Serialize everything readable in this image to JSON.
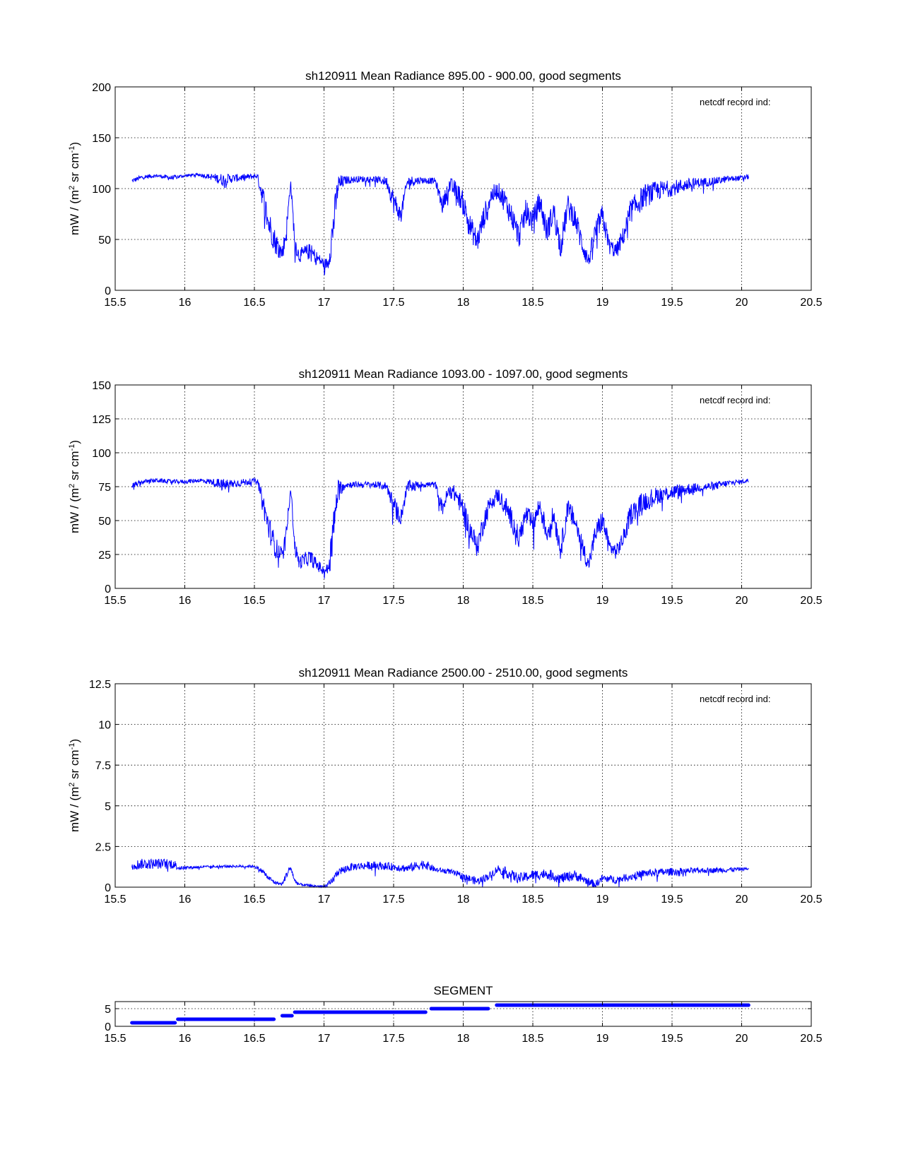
{
  "chart_data": [
    {
      "type": "line",
      "title": "sh120911 Mean Radiance 895.00 - 900.00, good segments",
      "xlabel": "",
      "ylabel": "mW / (m^2 sr cm^-1)",
      "ylabel_parts": [
        "mW / (m",
        "2",
        " sr cm",
        "-1",
        ")"
      ],
      "annotation": "netcdf record ind:",
      "xlim": [
        15.5,
        20.5
      ],
      "ylim": [
        0,
        200
      ],
      "xticks": [
        15.5,
        16,
        16.5,
        17,
        17.5,
        18,
        18.5,
        19,
        19.5,
        20,
        20.5
      ],
      "xtick_labels": [
        "15.5",
        "16",
        "16.5",
        "17",
        "17.5",
        "18",
        "18.5",
        "19",
        "19.5",
        "20",
        "20.5"
      ],
      "yticks": [
        0,
        50,
        100,
        150,
        200
      ],
      "ytick_labels": [
        "0",
        "50",
        "100",
        "150",
        "200"
      ],
      "grid": true,
      "color": "#0000ff",
      "series": [
        {
          "name": "Mean Radiance 895-900",
          "x": [
            15.62,
            15.7,
            15.8,
            15.9,
            16.0,
            16.1,
            16.2,
            16.27,
            16.35,
            16.45,
            16.52,
            16.56,
            16.6,
            16.65,
            16.7,
            16.73,
            16.76,
            16.79,
            16.82,
            16.86,
            16.9,
            16.95,
            17.0,
            17.03,
            17.06,
            17.1,
            17.15,
            17.25,
            17.35,
            17.45,
            17.5,
            17.55,
            17.6,
            17.7,
            17.8,
            17.85,
            17.9,
            17.95,
            18.0,
            18.05,
            18.1,
            18.15,
            18.2,
            18.25,
            18.3,
            18.35,
            18.4,
            18.45,
            18.5,
            18.55,
            18.6,
            18.65,
            18.7,
            18.75,
            18.8,
            18.85,
            18.9,
            18.95,
            19.0,
            19.05,
            19.1,
            19.15,
            19.2,
            19.3,
            19.4,
            19.5,
            19.6,
            19.7,
            19.8,
            19.9,
            20.0,
            20.05
          ],
          "y": [
            108,
            112,
            113,
            111,
            113,
            114,
            112,
            110,
            111,
            112,
            113,
            95,
            70,
            50,
            38,
            60,
            108,
            50,
            35,
            38,
            40,
            33,
            27,
            28,
            60,
            105,
            109,
            110,
            110,
            108,
            90,
            75,
            108,
            109,
            108,
            85,
            105,
            100,
            88,
            65,
            50,
            75,
            95,
            100,
            90,
            75,
            55,
            80,
            70,
            90,
            60,
            80,
            45,
            85,
            75,
            50,
            30,
            60,
            75,
            45,
            40,
            55,
            80,
            95,
            100,
            102,
            105,
            107,
            108,
            110,
            111,
            112
          ],
          "noise": [
            3,
            3,
            2,
            3,
            2,
            2,
            4,
            8,
            5,
            4,
            3,
            15,
            18,
            15,
            10,
            15,
            5,
            12,
            8,
            10,
            10,
            8,
            6,
            8,
            25,
            15,
            5,
            4,
            4,
            6,
            15,
            10,
            8,
            4,
            4,
            10,
            10,
            12,
            15,
            15,
            15,
            15,
            12,
            10,
            15,
            15,
            15,
            15,
            15,
            15,
            15,
            15,
            15,
            15,
            15,
            15,
            10,
            15,
            15,
            10,
            10,
            12,
            15,
            15,
            12,
            10,
            8,
            6,
            5,
            4,
            3,
            3
          ]
        }
      ]
    },
    {
      "type": "line",
      "title": "sh120911 Mean Radiance 1093.00 - 1097.00, good segments",
      "xlabel": "",
      "ylabel": "mW / (m^2 sr cm^-1)",
      "ylabel_parts": [
        "mW / (m",
        "2",
        " sr cm",
        "-1",
        ")"
      ],
      "annotation": "netcdf record ind:",
      "xlim": [
        15.5,
        20.5
      ],
      "ylim": [
        0,
        150
      ],
      "xticks": [
        15.5,
        16,
        16.5,
        17,
        17.5,
        18,
        18.5,
        19,
        19.5,
        20,
        20.5
      ],
      "xtick_labels": [
        "15.5",
        "16",
        "16.5",
        "17",
        "17.5",
        "18",
        "18.5",
        "19",
        "19.5",
        "20",
        "20.5"
      ],
      "yticks": [
        0,
        25,
        50,
        75,
        100,
        125,
        150
      ],
      "ytick_labels": [
        "0",
        "25",
        "50",
        "75",
        "100",
        "125",
        "150"
      ],
      "grid": true,
      "color": "#0000ff",
      "series": [
        {
          "name": "Mean Radiance 1093-1097",
          "x": [
            15.62,
            15.7,
            15.8,
            15.9,
            16.0,
            16.1,
            16.2,
            16.27,
            16.35,
            16.45,
            16.52,
            16.56,
            16.6,
            16.65,
            16.7,
            16.73,
            16.76,
            16.79,
            16.82,
            16.86,
            16.9,
            16.95,
            17.0,
            17.03,
            17.06,
            17.1,
            17.15,
            17.25,
            17.35,
            17.45,
            17.5,
            17.55,
            17.6,
            17.7,
            17.8,
            17.85,
            17.9,
            17.95,
            18.0,
            18.05,
            18.1,
            18.15,
            18.2,
            18.25,
            18.3,
            18.35,
            18.4,
            18.45,
            18.5,
            18.55,
            18.6,
            18.65,
            18.7,
            18.75,
            18.8,
            18.85,
            18.9,
            18.95,
            19.0,
            19.05,
            19.1,
            19.15,
            19.2,
            19.3,
            19.4,
            19.5,
            19.6,
            19.7,
            19.8,
            19.9,
            20.0,
            20.05
          ],
          "y": [
            76,
            79,
            80,
            79,
            79,
            80,
            79,
            77,
            78,
            79,
            80,
            65,
            48,
            32,
            25,
            40,
            77,
            32,
            20,
            22,
            24,
            18,
            14,
            15,
            40,
            74,
            77,
            77,
            77,
            76,
            63,
            53,
            76,
            77,
            77,
            60,
            74,
            70,
            60,
            45,
            32,
            52,
            66,
            70,
            63,
            52,
            38,
            56,
            49,
            63,
            42,
            56,
            30,
            60,
            52,
            35,
            18,
            42,
            52,
            32,
            28,
            38,
            56,
            66,
            70,
            72,
            74,
            75,
            76,
            78,
            79,
            80
          ],
          "noise": [
            3,
            2,
            2,
            2,
            2,
            2,
            3,
            6,
            4,
            3,
            2,
            10,
            12,
            10,
            7,
            10,
            4,
            8,
            6,
            7,
            7,
            6,
            4,
            6,
            18,
            10,
            3,
            3,
            3,
            4,
            10,
            7,
            6,
            3,
            3,
            7,
            7,
            8,
            10,
            10,
            10,
            10,
            8,
            7,
            10,
            10,
            10,
            10,
            10,
            10,
            10,
            10,
            10,
            10,
            10,
            10,
            7,
            10,
            10,
            7,
            7,
            8,
            10,
            10,
            8,
            7,
            6,
            4,
            4,
            3,
            2,
            2
          ]
        }
      ]
    },
    {
      "type": "line",
      "title": "sh120911 Mean Radiance 2500.00 - 2510.00, good segments",
      "xlabel": "",
      "ylabel": "mW / (m^2 sr cm^-1)",
      "ylabel_parts": [
        "mW / (m",
        "2",
        " sr cm",
        "-1",
        ")"
      ],
      "annotation": "netcdf record ind:",
      "xlim": [
        15.5,
        20.5
      ],
      "ylim": [
        0,
        12.5
      ],
      "xticks": [
        15.5,
        16,
        16.5,
        17,
        17.5,
        18,
        18.5,
        19,
        19.5,
        20,
        20.5
      ],
      "xtick_labels": [
        "15.5",
        "16",
        "16.5",
        "17",
        "17.5",
        "18",
        "18.5",
        "19",
        "19.5",
        "20",
        "20.5"
      ],
      "yticks": [
        0,
        2.5,
        5,
        7.5,
        10,
        12.5
      ],
      "ytick_labels": [
        "0",
        "2.5",
        "5",
        "7.5",
        "10",
        "12.5"
      ],
      "grid": true,
      "color": "#0000ff",
      "series": [
        {
          "name": "Mean Radiance 2500-2510",
          "x": [
            15.62,
            15.7,
            15.8,
            15.92,
            15.96,
            16.1,
            16.3,
            16.5,
            16.56,
            16.6,
            16.65,
            16.7,
            16.73,
            16.76,
            16.79,
            16.82,
            16.9,
            17.0,
            17.05,
            17.1,
            17.2,
            17.35,
            17.5,
            17.6,
            17.72,
            17.8,
            17.9,
            18.0,
            18.1,
            18.2,
            18.25,
            18.3,
            18.4,
            18.5,
            18.6,
            18.7,
            18.8,
            18.9,
            18.95,
            19.0,
            19.1,
            19.2,
            19.3,
            19.5,
            19.7,
            19.9,
            20.05
          ],
          "y": [
            1.4,
            1.5,
            1.5,
            1.5,
            1.2,
            1.25,
            1.3,
            1.3,
            1.0,
            0.6,
            0.3,
            0.2,
            0.8,
            1.3,
            0.4,
            0.2,
            0.1,
            0.05,
            0.3,
            1.0,
            1.3,
            1.4,
            1.3,
            1.2,
            1.5,
            1.1,
            1.0,
            0.7,
            0.4,
            0.8,
            1.2,
            1.0,
            0.6,
            0.8,
            0.9,
            0.6,
            0.8,
            0.4,
            0.2,
            0.6,
            0.5,
            0.7,
            0.9,
            1.0,
            1.05,
            1.1,
            1.15
          ],
          "noise": [
            0.4,
            0.4,
            0.4,
            0.4,
            0.15,
            0.1,
            0.1,
            0.1,
            0.2,
            0.2,
            0.15,
            0.1,
            0.3,
            0.2,
            0.2,
            0.1,
            0.1,
            0.1,
            0.3,
            0.3,
            0.3,
            0.3,
            0.3,
            0.3,
            0.4,
            0.2,
            0.2,
            0.3,
            0.3,
            0.3,
            0.3,
            0.4,
            0.4,
            0.4,
            0.4,
            0.4,
            0.4,
            0.3,
            0.3,
            0.3,
            0.3,
            0.3,
            0.3,
            0.3,
            0.2,
            0.2,
            0.1
          ]
        }
      ]
    },
    {
      "type": "line",
      "title": "SEGMENT",
      "xlabel": "",
      "ylabel": "",
      "xlim": [
        15.5,
        20.5
      ],
      "ylim": [
        0,
        7
      ],
      "xticks": [
        15.5,
        16,
        16.5,
        17,
        17.5,
        18,
        18.5,
        19,
        19.5,
        20,
        20.5
      ],
      "xtick_labels": [
        "15.5",
        "16",
        "16.5",
        "17",
        "17.5",
        "18",
        "18.5",
        "19",
        "19.5",
        "20",
        "20.5"
      ],
      "yticks": [
        0,
        5
      ],
      "ytick_labels": [
        "0",
        "5"
      ],
      "grid": true,
      "color": "#0000ff",
      "segments": [
        {
          "x0": 15.62,
          "x1": 15.93,
          "y": 1
        },
        {
          "x0": 15.95,
          "x1": 16.64,
          "y": 2
        },
        {
          "x0": 16.7,
          "x1": 16.77,
          "y": 3
        },
        {
          "x0": 16.79,
          "x1": 17.73,
          "y": 4
        },
        {
          "x0": 17.77,
          "x1": 18.18,
          "y": 5
        },
        {
          "x0": 18.24,
          "x1": 20.05,
          "y": 6
        }
      ]
    }
  ]
}
